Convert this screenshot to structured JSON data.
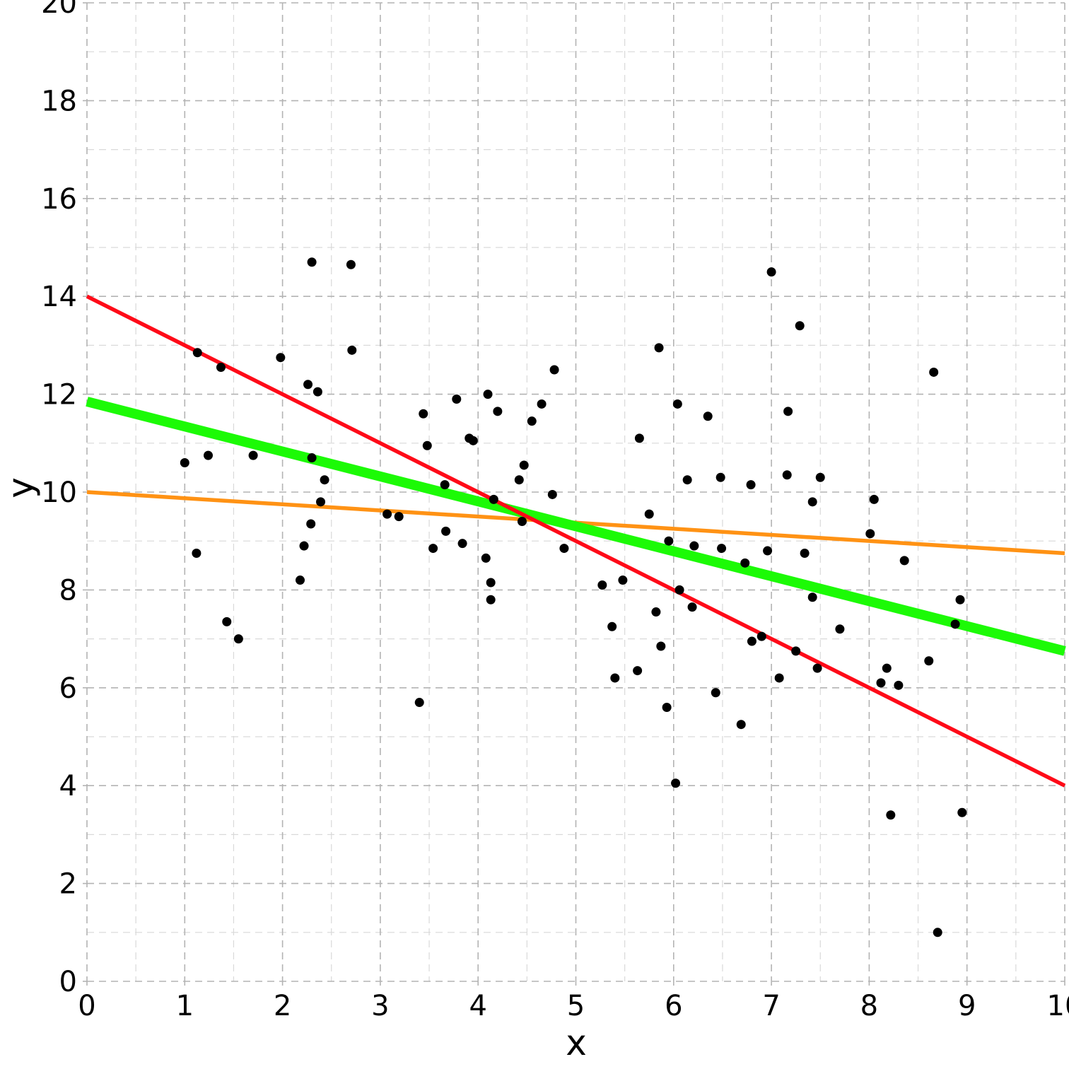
{
  "chart_data": {
    "type": "scatter",
    "title": "",
    "xlabel": "x",
    "ylabel": "y",
    "xlim": [
      0,
      10
    ],
    "ylim": [
      0,
      20
    ],
    "xticks": [
      "0",
      "1",
      "2",
      "3",
      "4",
      "5",
      "6",
      "7",
      "8",
      "9",
      "10"
    ],
    "yticks": [
      "0",
      "2",
      "4",
      "6",
      "8",
      "10",
      "12",
      "14",
      "16",
      "18",
      "20"
    ],
    "grid": true,
    "legend": "none",
    "points_color": "#000000",
    "points": [
      [
        1.0,
        10.6
      ],
      [
        1.12,
        8.75
      ],
      [
        1.13,
        12.85
      ],
      [
        1.24,
        10.75
      ],
      [
        1.37,
        12.55
      ],
      [
        1.43,
        7.35
      ],
      [
        1.55,
        7.0
      ],
      [
        1.7,
        10.75
      ],
      [
        1.98,
        12.75
      ],
      [
        2.18,
        8.2
      ],
      [
        2.22,
        8.9
      ],
      [
        2.26,
        12.2
      ],
      [
        2.29,
        9.35
      ],
      [
        2.3,
        14.7
      ],
      [
        2.3,
        10.7
      ],
      [
        2.36,
        12.05
      ],
      [
        2.39,
        9.8
      ],
      [
        2.43,
        10.25
      ],
      [
        2.7,
        14.65
      ],
      [
        2.71,
        12.9
      ],
      [
        3.07,
        9.55
      ],
      [
        3.19,
        9.5
      ],
      [
        3.4,
        5.7
      ],
      [
        3.44,
        11.6
      ],
      [
        3.48,
        10.95
      ],
      [
        3.54,
        8.85
      ],
      [
        3.66,
        10.15
      ],
      [
        3.67,
        9.2
      ],
      [
        3.78,
        11.9
      ],
      [
        3.84,
        8.95
      ],
      [
        3.91,
        11.1
      ],
      [
        3.95,
        11.05
      ],
      [
        4.08,
        8.65
      ],
      [
        4.1,
        12.0
      ],
      [
        4.13,
        7.8
      ],
      [
        4.13,
        8.15
      ],
      [
        4.16,
        9.85
      ],
      [
        4.2,
        11.65
      ],
      [
        4.42,
        10.25
      ],
      [
        4.45,
        9.4
      ],
      [
        4.47,
        10.55
      ],
      [
        4.55,
        11.45
      ],
      [
        4.65,
        11.8
      ],
      [
        4.76,
        9.95
      ],
      [
        4.78,
        12.5
      ],
      [
        4.88,
        8.85
      ],
      [
        5.27,
        8.1
      ],
      [
        5.37,
        7.25
      ],
      [
        5.4,
        6.2
      ],
      [
        5.48,
        8.2
      ],
      [
        5.63,
        6.35
      ],
      [
        5.65,
        11.1
      ],
      [
        5.75,
        9.55
      ],
      [
        5.82,
        7.55
      ],
      [
        5.85,
        12.95
      ],
      [
        5.87,
        6.85
      ],
      [
        5.93,
        5.6
      ],
      [
        5.95,
        9.0
      ],
      [
        6.02,
        4.05
      ],
      [
        6.04,
        11.8
      ],
      [
        6.06,
        8.0
      ],
      [
        6.14,
        10.25
      ],
      [
        6.19,
        7.65
      ],
      [
        6.21,
        8.9
      ],
      [
        6.35,
        11.55
      ],
      [
        6.43,
        5.9
      ],
      [
        6.48,
        10.3
      ],
      [
        6.49,
        8.85
      ],
      [
        6.69,
        5.25
      ],
      [
        6.73,
        8.55
      ],
      [
        6.79,
        10.15
      ],
      [
        6.8,
        6.95
      ],
      [
        6.9,
        7.05
      ],
      [
        6.96,
        8.8
      ],
      [
        7.0,
        14.5
      ],
      [
        7.08,
        6.2
      ],
      [
        7.16,
        10.35
      ],
      [
        7.17,
        11.65
      ],
      [
        7.25,
        6.75
      ],
      [
        7.29,
        13.4
      ],
      [
        7.34,
        8.75
      ],
      [
        7.42,
        7.85
      ],
      [
        7.42,
        9.8
      ],
      [
        7.47,
        6.4
      ],
      [
        7.5,
        10.3
      ],
      [
        7.7,
        7.2
      ],
      [
        8.01,
        9.15
      ],
      [
        8.05,
        9.85
      ],
      [
        8.12,
        6.1
      ],
      [
        8.18,
        6.4
      ],
      [
        8.22,
        3.4
      ],
      [
        8.3,
        6.05
      ],
      [
        8.36,
        8.6
      ],
      [
        8.61,
        6.55
      ],
      [
        8.66,
        12.45
      ],
      [
        8.7,
        1.0
      ],
      [
        8.88,
        7.3
      ],
      [
        8.93,
        7.8
      ],
      [
        8.95,
        3.45
      ]
    ],
    "lines": [
      {
        "color": "#ff9214",
        "width": 5.5,
        "intercept": 10.0,
        "slope": -0.125
      },
      {
        "color": "#1cfa06",
        "width": 14,
        "intercept": 11.85,
        "slope": -0.51
      },
      {
        "color": "#ff0a18",
        "width": 5.5,
        "intercept": 14.0,
        "slope": -1.0
      }
    ]
  }
}
